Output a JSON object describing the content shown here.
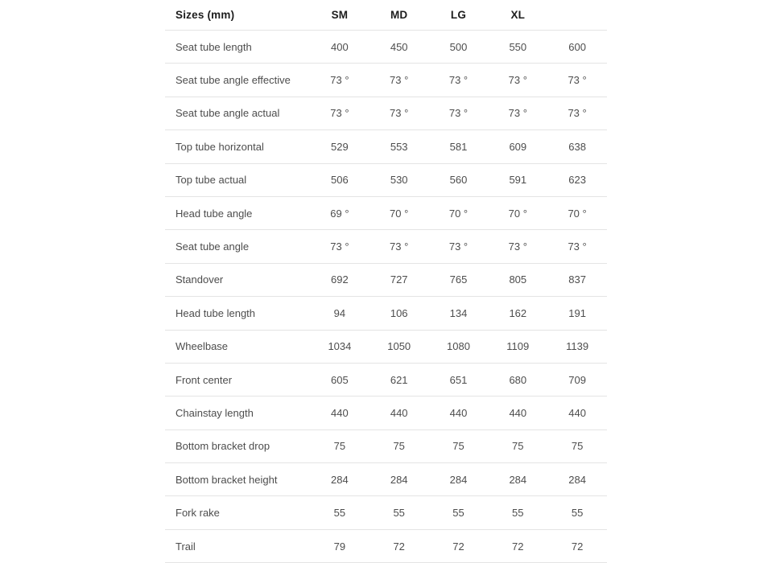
{
  "table": {
    "header": {
      "label": "Sizes (mm)",
      "columns": [
        "SM",
        "MD",
        "LG",
        "XL",
        ""
      ]
    },
    "rows": [
      {
        "label": "Seat tube length",
        "values": [
          "400",
          "450",
          "500",
          "550",
          "600"
        ]
      },
      {
        "label": "Seat tube angle effective",
        "values": [
          "73 °",
          "73 °",
          "73 °",
          "73 °",
          "73 °"
        ]
      },
      {
        "label": "Seat tube angle actual",
        "values": [
          "73 °",
          "73 °",
          "73 °",
          "73 °",
          "73 °"
        ]
      },
      {
        "label": "Top tube horizontal",
        "values": [
          "529",
          "553",
          "581",
          "609",
          "638"
        ]
      },
      {
        "label": "Top tube actual",
        "values": [
          "506",
          "530",
          "560",
          "591",
          "623"
        ]
      },
      {
        "label": "Head tube angle",
        "values": [
          "69 °",
          "70 °",
          "70 °",
          "70 °",
          "70 °"
        ]
      },
      {
        "label": "Seat tube angle",
        "values": [
          "73 °",
          "73 °",
          "73 °",
          "73 °",
          "73 °"
        ]
      },
      {
        "label": "Standover",
        "values": [
          "692",
          "727",
          "765",
          "805",
          "837"
        ]
      },
      {
        "label": "Head tube length",
        "values": [
          "94",
          "106",
          "134",
          "162",
          "191"
        ]
      },
      {
        "label": "Wheelbase",
        "values": [
          "1034",
          "1050",
          "1080",
          "1109",
          "1139"
        ]
      },
      {
        "label": "Front center",
        "values": [
          "605",
          "621",
          "651",
          "680",
          "709"
        ]
      },
      {
        "label": "Chainstay length",
        "values": [
          "440",
          "440",
          "440",
          "440",
          "440"
        ]
      },
      {
        "label": "Bottom bracket drop",
        "values": [
          "75",
          "75",
          "75",
          "75",
          "75"
        ]
      },
      {
        "label": "Bottom bracket height",
        "values": [
          "284",
          "284",
          "284",
          "284",
          "284"
        ]
      },
      {
        "label": "Fork rake",
        "values": [
          "55",
          "55",
          "55",
          "55",
          "55"
        ]
      },
      {
        "label": "Trail",
        "values": [
          "79",
          "72",
          "72",
          "72",
          "72"
        ]
      }
    ],
    "colors": {
      "background": "#ffffff",
      "header_text": "#1d1d1d",
      "body_text": "#4d4d4d",
      "divider": "#e4e4e4"
    }
  }
}
